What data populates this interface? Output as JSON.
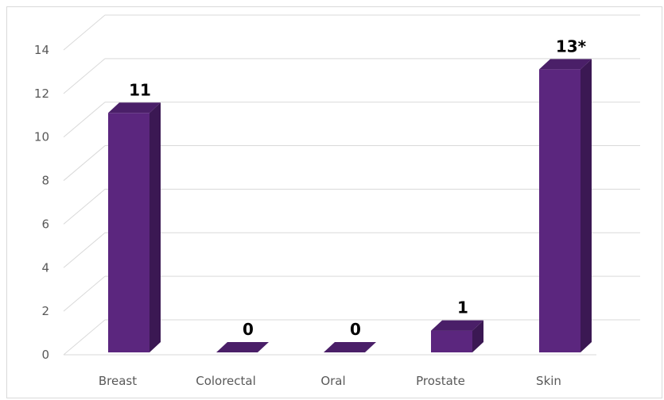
{
  "chart_data": {
    "type": "bar",
    "title": "",
    "xlabel": "",
    "ylabel": "",
    "categories": [
      "Breast",
      "Colorectal",
      "Oral",
      "Prostate",
      "Skin"
    ],
    "values": [
      11,
      0,
      0,
      1,
      13
    ],
    "data_labels": [
      "11",
      "0",
      "0",
      "1",
      "13*"
    ],
    "ylim": [
      0,
      14
    ],
    "yticks": [
      "0",
      "2",
      "4",
      "6",
      "8",
      "10",
      "12",
      "14"
    ],
    "grid": true,
    "legend": "none",
    "style": "3d-column",
    "colors": {
      "front": "#5b267e",
      "top": "#4a1f68",
      "side": "#3b1853"
    }
  }
}
